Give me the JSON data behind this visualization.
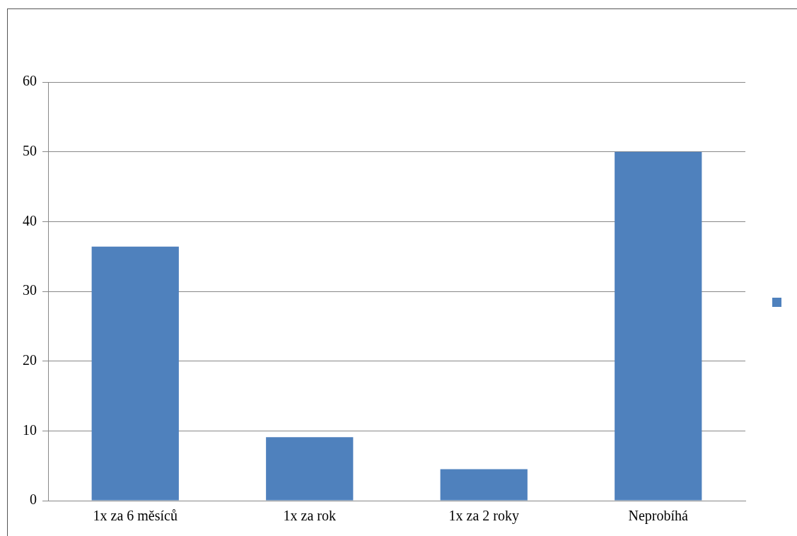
{
  "chart_data": {
    "type": "bar",
    "categories": [
      "1x za 6 měsíců",
      "1x za rok",
      "1x za 2 roky",
      "Neprobíhá"
    ],
    "series": [
      {
        "color": "#4f81bd",
        "values": [
          36.4,
          9.1,
          4.5,
          50
        ]
      }
    ],
    "ylim": [
      0,
      60
    ],
    "yticks": [
      0,
      10,
      20,
      30,
      40,
      50,
      60
    ],
    "grid": "y"
  }
}
